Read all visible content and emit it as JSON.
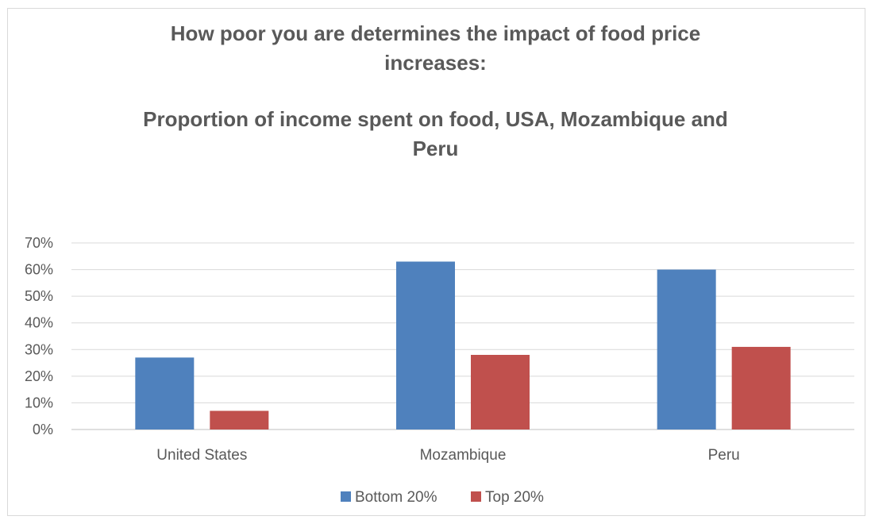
{
  "chart_data": {
    "type": "bar",
    "title_lines": [
      "How poor you are determines the impact of food price",
      "increases:"
    ],
    "subtitle_lines": [
      "Proportion of income spent on food, USA, Mozambique and",
      "Peru"
    ],
    "categories": [
      "United States",
      "Mozambique",
      "Peru"
    ],
    "series": [
      {
        "name": "Bottom 20%",
        "color": "#4f81bd",
        "values": [
          27,
          63,
          60
        ]
      },
      {
        "name": "Top 20%",
        "color": "#c0504d",
        "values": [
          7,
          28,
          31
        ]
      }
    ],
    "ylim": [
      0,
      70
    ],
    "yticks": [
      0,
      10,
      20,
      30,
      40,
      50,
      60,
      70
    ],
    "ytick_labels": [
      "0%",
      "10%",
      "20%",
      "30%",
      "40%",
      "50%",
      "60%",
      "70%"
    ],
    "grid": true,
    "legend_position": "bottom"
  }
}
